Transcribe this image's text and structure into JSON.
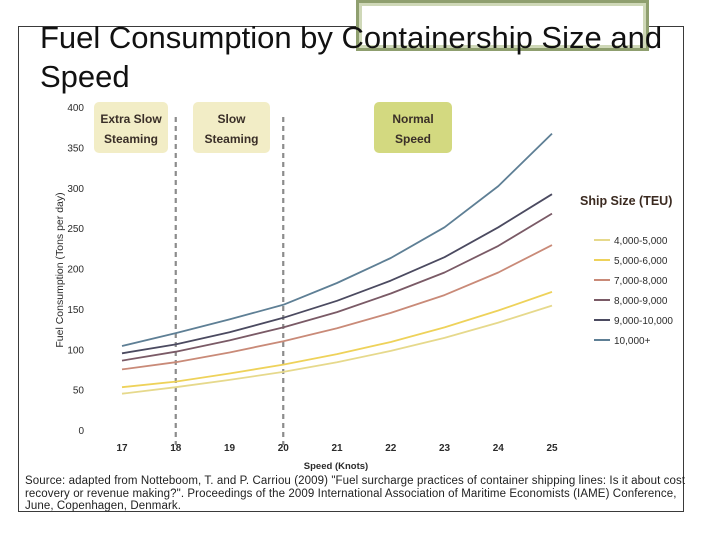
{
  "slide": {
    "title": "Fuel Consumption by Containership Size and Speed",
    "source": "Source: adapted from Notteboom, T. and P. Carriou (2009) \"Fuel surcharge practices of container shipping lines: Is it about cost recovery or revenue making?\". Proceedings of the 2009 International Association of Maritime Economists (IAME) Conference, June, Copenhagen, Denmark."
  },
  "colors": {
    "axis_text": "#2b2b2b",
    "zone_fill": "#f2edc6",
    "zone_fill_normal": "#d3d980",
    "dashed_line": "#8c8c8c",
    "legend_title": "#3b2a20"
  },
  "chart_data": {
    "type": "line",
    "title": "",
    "xlabel": "Speed (Knots)",
    "ylabel": "Fuel Consumption (Tons per day)",
    "x": [
      17,
      18,
      19,
      20,
      21,
      22,
      23,
      24,
      25
    ],
    "xlim": [
      17,
      25
    ],
    "ylim": [
      0,
      400
    ],
    "yticks": [
      0,
      50,
      100,
      150,
      200,
      250,
      300,
      350,
      400
    ],
    "grid": false,
    "legend_title": "Ship Size (TEU)",
    "legend_position": "right",
    "series": [
      {
        "name": "4,000-5,000",
        "color": "#e6d98c",
        "values": [
          45,
          53,
          62,
          72,
          84,
          98,
          114,
          133,
          154
        ]
      },
      {
        "name": "5,000-6,000",
        "color": "#eed25a",
        "values": [
          53,
          60,
          70,
          81,
          94,
          109,
          127,
          148,
          171
        ]
      },
      {
        "name": "7,000-8,000",
        "color": "#c98a78",
        "values": [
          75,
          84,
          96,
          110,
          126,
          145,
          167,
          195,
          229
        ]
      },
      {
        "name": "8,000-9,000",
        "color": "#7a5a66",
        "values": [
          86,
          97,
          111,
          127,
          146,
          169,
          195,
          228,
          268
        ]
      },
      {
        "name": "9,000-10,000",
        "color": "#4b4a60",
        "values": [
          95,
          106,
          121,
          139,
          160,
          185,
          214,
          251,
          292
        ]
      },
      {
        "name": "10,000+",
        "color": "#5e7f95",
        "values": [
          104,
          120,
          137,
          155,
          182,
          213,
          251,
          302,
          367
        ]
      }
    ],
    "speed_zones": [
      {
        "label_line1": "Extra Slow",
        "label_line2": "Steaming",
        "highlight": false
      },
      {
        "label_line1": "Slow",
        "label_line2": "Steaming",
        "highlight": false
      },
      {
        "label_line1": "Normal",
        "label_line2": "Speed",
        "highlight": true
      }
    ],
    "zone_boundaries": [
      18,
      20
    ]
  }
}
